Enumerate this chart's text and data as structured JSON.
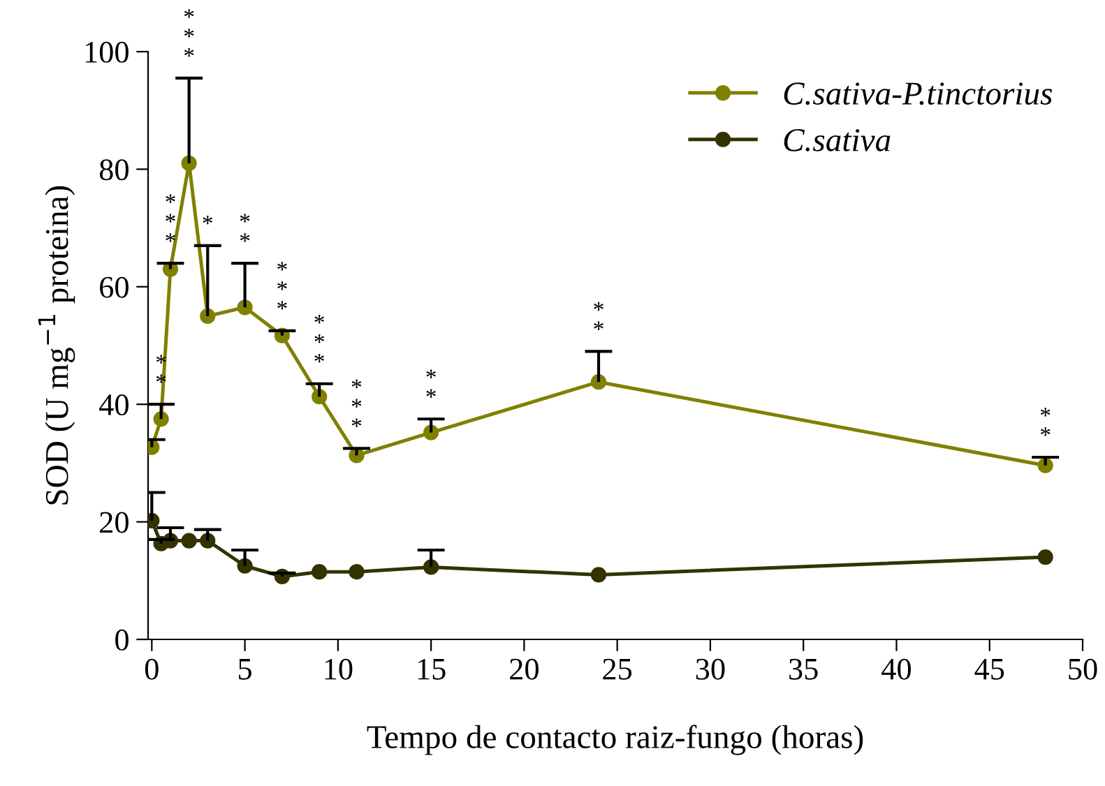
{
  "chart_data": {
    "type": "line",
    "xlabel": "Tempo de contacto raiz-fungo (horas)",
    "ylabel": "SOD (U mg$^{−1}$ proteina)",
    "x": [
      0,
      0.5,
      1,
      2,
      3,
      5,
      7,
      9,
      11,
      15,
      24,
      48
    ],
    "series": [
      {
        "name": "C.sativa-P.tinctorius",
        "color": "#808000",
        "values": [
          32.7,
          37.5,
          63,
          81,
          55,
          56.5,
          51.7,
          41.3,
          31.3,
          35.2,
          43.8,
          29.6
        ],
        "errors": [
          [
            32.7,
            34
          ],
          [
            37.5,
            40
          ],
          [
            63,
            64
          ],
          [
            81,
            95.5
          ],
          [
            55,
            67
          ],
          [
            56.5,
            64
          ],
          [
            51.7,
            52.5
          ],
          [
            41.3,
            43.5
          ],
          [
            31.3,
            32.5
          ],
          [
            35.2,
            37.5
          ],
          [
            43.8,
            49
          ],
          [
            29.6,
            31
          ]
        ]
      },
      {
        "name": "C.sativa",
        "color": "#333300",
        "values": [
          20.2,
          16.3,
          16.8,
          16.8,
          16.8,
          12.5,
          10.7,
          11.5,
          11.5,
          12.3,
          11,
          14
        ],
        "errors": [
          [
            20.2,
            25
          ],
          [
            16.3,
            17
          ],
          [
            16.8,
            19
          ],
          null,
          [
            16.8,
            18.7
          ],
          [
            12.5,
            15.2
          ],
          [
            10.7,
            11.3
          ],
          null,
          null,
          [
            12.3,
            15.2
          ],
          null,
          null
        ]
      }
    ],
    "annotations": [
      {
        "text": "*\n*",
        "x": 0.5,
        "y": 40
      },
      {
        "text": "*\n*\n*",
        "x": 1,
        "y": 64
      },
      {
        "text": "*\n*\n*",
        "x": 2,
        "y": 95.5
      },
      {
        "text": "*",
        "x": 3,
        "y": 67
      },
      {
        "text": "*\n*",
        "x": 5,
        "y": 64
      },
      {
        "text": "*\n*\n*",
        "x": 7,
        "y": 52.5
      },
      {
        "text": "*\n*\n*",
        "x": 9,
        "y": 43.5
      },
      {
        "text": "*\n*\n*",
        "x": 11,
        "y": 32.5
      },
      {
        "text": "*\n*",
        "x": 15,
        "y": 37.5
      },
      {
        "text": "*\n*",
        "x": 24,
        "y": 49
      },
      {
        "text": "*\n*",
        "x": 48,
        "y": 31
      }
    ],
    "xlim": [
      -0.2,
      50
    ],
    "ylim": [
      0,
      100
    ],
    "xticks": [
      0,
      5,
      10,
      15,
      20,
      25,
      30,
      35,
      40,
      45,
      50
    ],
    "yticks": [
      0,
      20,
      40,
      60,
      80,
      100
    ],
    "marker": "circle",
    "line_style": "solid",
    "legend": "top right",
    "grid": false
  }
}
